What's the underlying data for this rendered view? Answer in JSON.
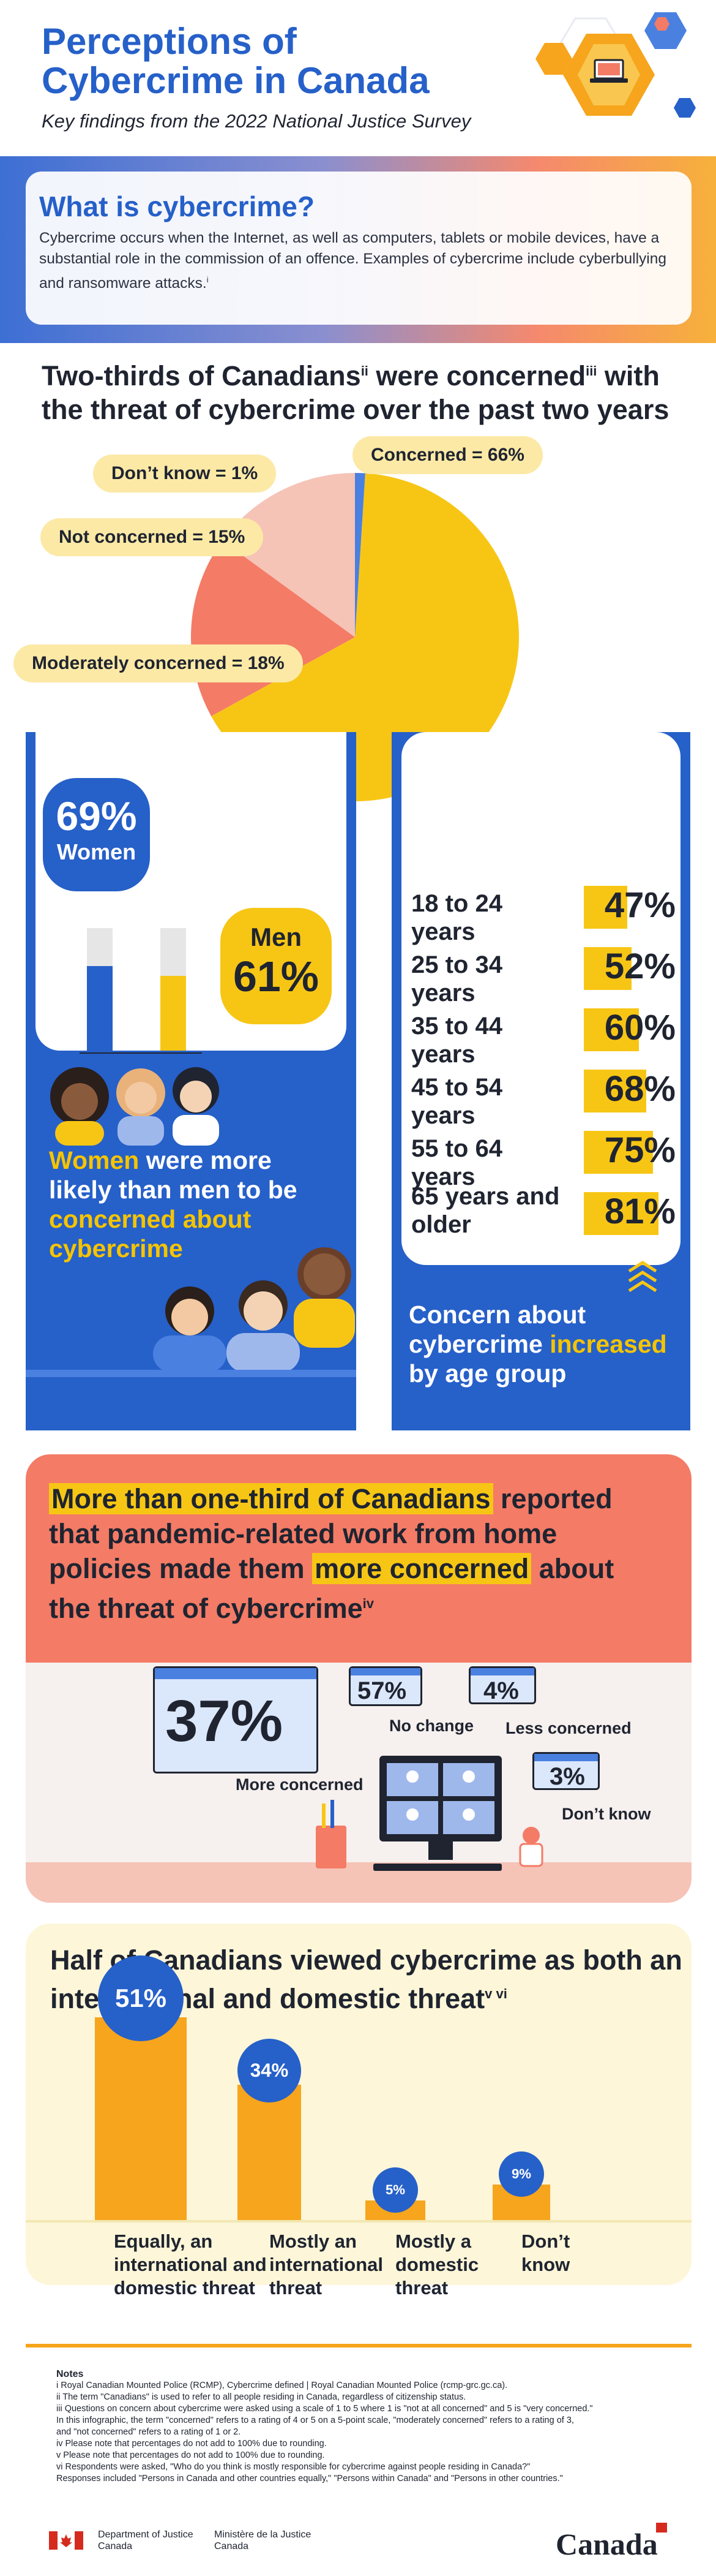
{
  "header": {
    "title": "Perceptions of Cybercrime in Canada",
    "subtitle": "Key findings from the 2022 National Justice Survey"
  },
  "definition": {
    "heading": "What is cybercrime?",
    "text": "Cybercrime occurs when the Internet, as well as computers, tablets or mobile devices, have a substantial role in the commission of an offence. Examples of cybercrime include cyberbullying and ransomware attacks.",
    "footnote": "i"
  },
  "concern": {
    "heading_part1": "Two-thirds of Canadians",
    "heading_sup1": "ii",
    "heading_part2": " were concerned",
    "heading_sup2": "iii",
    "heading_part3": " with the threat of cybercrime over the past two years"
  },
  "gender": {
    "women_pct": "69%",
    "women_label": "Women",
    "men_label": "Men",
    "men_pct": "61%",
    "caption_part1": "Women",
    "caption_part2": " were more likely than men to be ",
    "caption_part3": "concerned about cybercrime"
  },
  "age": {
    "caption_part1": "Concern about cybercrime ",
    "caption_part2": "increased",
    "caption_part3": " by age group"
  },
  "remote": {
    "heading_part1": "More than one-third of Canadians",
    "heading_part2": " reported that pandemic-related work from home policies made them ",
    "heading_part3": "more concerned",
    "heading_part4": " about the threat of cybercrime",
    "heading_sup": "iv"
  },
  "threat": {
    "heading": "Half of Canadians viewed cybercrime as both an international and domestic threat",
    "heading_sup": "v vi"
  },
  "notes": {
    "heading": "Notes",
    "lines": [
      "i  Royal Canadian Mounted Police (RCMP), Cybercrime defined | Royal Canadian Mounted Police (rcmp-grc.gc.ca).",
      "ii  The term \"Canadians\" is used to refer to all people residing in Canada, regardless of citizenship status.",
      "iii  Questions on concern about cybercrime were asked using a scale of 1 to 5 where 1 is \"not at all concerned\" and 5 is \"very concerned.\"",
      "In this infographic, the term \"concerned\" refers to a rating of 4 or 5 on a 5-point scale, \"moderately concerned\" refers to a rating of 3,",
      "and \"not concerned\" refers to a rating of 1 or 2.",
      "iv  Please note that percentages do not add to 100% due to rounding.",
      "v  Please note that percentages do not add to 100% due to rounding.",
      "vi  Respondents were asked, \"Who do you think is mostly responsible for cybercrime against people residing in Canada?\"",
      "Responses included \"Persons in Canada and other countries equally,\" \"Persons within Canada\" and \"Persons in other countries.\""
    ]
  },
  "footer": {
    "dept_en_1": "Department of Justice",
    "dept_en_2": "Canada",
    "dept_fr_1": "Ministère de la Justice",
    "dept_fr_2": "Canada",
    "wordmark": "Canada"
  },
  "colors": {
    "blue": "#2660c9",
    "yellow": "#f7c615",
    "orange": "#f7a51d",
    "salmon": "#f47b66",
    "pink": "#f6c3b7",
    "grey": "#e6e6e6"
  },
  "chart_data": [
    {
      "type": "pie",
      "slices": [
        {
          "label": "Concerned = 66%",
          "value": 66,
          "color": "#f7c615"
        },
        {
          "label": "Moderately concerned = 18%",
          "value": 18,
          "color": "#f47b66"
        },
        {
          "label": "Not concerned = 15%",
          "value": 15,
          "color": "#f6c3b7"
        },
        {
          "label": "Don’t know = 1%",
          "value": 1,
          "color": "#4a80e0"
        }
      ]
    },
    {
      "type": "bar",
      "categories": [
        "Women",
        "Men"
      ],
      "values": [
        69,
        61
      ],
      "labels": [
        "69%",
        "61%"
      ],
      "ylim": [
        0,
        100
      ],
      "colors": [
        "#2660c9",
        "#f7c615"
      ]
    },
    {
      "type": "bar",
      "orientation": "horizontal",
      "categories": [
        "18 to 24 years",
        "25 to 34 years",
        "35 to 44 years",
        "45 to 54 years",
        "55 to 64 years",
        "65 years and older"
      ],
      "values": [
        47,
        52,
        60,
        68,
        75,
        81
      ],
      "labels": [
        "47%",
        "52%",
        "60%",
        "68%",
        "75%",
        "81%"
      ],
      "xlim": [
        0,
        100
      ]
    },
    {
      "type": "bar",
      "categories": [
        "More concerned",
        "No change",
        "Less concerned",
        "Don’t know"
      ],
      "values": [
        37,
        57,
        4,
        3
      ],
      "labels": [
        "37%",
        "57%",
        "4%",
        "3%"
      ]
    },
    {
      "type": "bar",
      "categories": [
        "Equally, an international and domestic threat",
        "Mostly an international threat",
        "Mostly a domestic threat",
        "Don’t know"
      ],
      "values": [
        51,
        34,
        5,
        9
      ],
      "labels": [
        "51%",
        "34%",
        "5%",
        "9%"
      ],
      "ylim": [
        0,
        60
      ]
    }
  ]
}
